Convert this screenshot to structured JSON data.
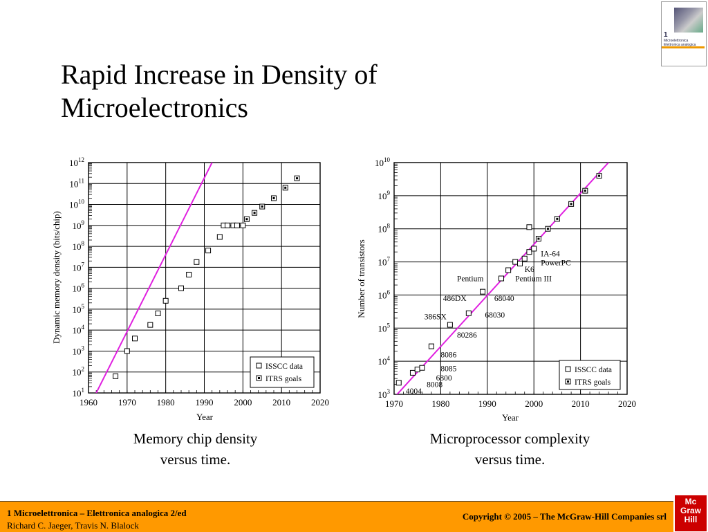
{
  "slide": {
    "title": "Rapid Increase in Density of\nMicroelectronics",
    "caption_left": "Memory chip density\nversus time.",
    "caption_right": "Microprocessor complexity\nversus time."
  },
  "footer": {
    "line1": "1 Microelettronica – Elettronica analogica 2/ed",
    "line2": "Richard C. Jaeger, Travis N. Blalock",
    "copyright": "Copyright © 2005 – The McGraw-Hill Companies srl",
    "logo_text": "Mc Graw Hill",
    "bar_color": "#ff9900",
    "logo_color": "#cc0000"
  },
  "book_cover": {
    "number": "1",
    "title": "Microelettronica\nElettronica analogica"
  },
  "chart_data": [
    {
      "type": "scatter",
      "x_scale": "linear",
      "y_scale": "log",
      "xlabel": "Year",
      "ylabel": "Dynamic memory density (bits/chip)",
      "xlim": [
        1960,
        2020
      ],
      "ylim_exp": [
        1,
        12
      ],
      "x_ticks": [
        "1960",
        "1970",
        "1980",
        "1990",
        "2000",
        "2010",
        "2020"
      ],
      "y_tick_exps": [
        "1",
        "2",
        "3",
        "4",
        "5",
        "6",
        "7",
        "8",
        "9",
        "10",
        "11",
        "12"
      ],
      "grid": true,
      "legend": [
        "ISSCC data",
        "ITRS goals"
      ],
      "legend_position": "bottom-right",
      "trend_color": "#e020e0",
      "trend_line": [
        [
          1962,
          1
        ],
        [
          1992,
          12
        ]
      ],
      "series": [
        {
          "name": "ISSCC data",
          "marker": "open-square",
          "points": [
            [
              1967,
              1.8
            ],
            [
              1970,
              3.0
            ],
            [
              1972,
              3.6
            ],
            [
              1976,
              4.25
            ],
            [
              1978,
              4.8
            ],
            [
              1980,
              5.4
            ],
            [
              1984,
              6.0
            ],
            [
              1986,
              6.65
            ],
            [
              1988,
              7.25
            ],
            [
              1991,
              7.8
            ],
            [
              1994,
              8.45
            ],
            [
              1995,
              9.0
            ],
            [
              1996,
              9.0
            ],
            [
              1997.5,
              9.0
            ],
            [
              1998.5,
              9.0
            ],
            [
              2000,
              9.0
            ]
          ]
        },
        {
          "name": "ITRS goals",
          "marker": "dot-square",
          "points": [
            [
              2001,
              9.3
            ],
            [
              2003,
              9.6
            ],
            [
              2005,
              9.9
            ],
            [
              2008,
              10.3
            ],
            [
              2011,
              10.8
            ],
            [
              2014,
              11.25
            ]
          ]
        }
      ]
    },
    {
      "type": "scatter",
      "x_scale": "linear",
      "y_scale": "log",
      "xlabel": "Year",
      "ylabel": "Number of transistors",
      "xlim": [
        1970,
        2020
      ],
      "ylim_exp": [
        3,
        10
      ],
      "x_ticks": [
        "1970",
        "1980",
        "1990",
        "2000",
        "2010",
        "2020"
      ],
      "y_tick_exps": [
        "3",
        "4",
        "5",
        "6",
        "7",
        "8",
        "9",
        "10"
      ],
      "grid": true,
      "legend": [
        "ISSCC data",
        "ITRS goals"
      ],
      "legend_position": "bottom-right",
      "trend_color": "#e020e0",
      "trend_line": [
        [
          1970,
          2.9
        ],
        [
          2016,
          10.0
        ]
      ],
      "series": [
        {
          "name": "ISSCC data",
          "marker": "open-square",
          "points": [
            [
              1971,
              3.35
            ],
            [
              1974,
              3.65
            ],
            [
              1975,
              3.75
            ],
            [
              1976,
              3.8
            ],
            [
              1978,
              4.45
            ],
            [
              1982,
              5.1
            ],
            [
              1986,
              5.45
            ],
            [
              1989,
              6.1
            ],
            [
              1993,
              6.5
            ],
            [
              1994.5,
              6.75
            ],
            [
              1996,
              7.0
            ],
            [
              1997,
              6.95
            ],
            [
              1998,
              7.1
            ],
            [
              1999,
              7.3
            ],
            [
              2000,
              7.4
            ],
            [
              1999,
              8.05
            ]
          ]
        },
        {
          "name": "ITRS goals",
          "marker": "dot-square",
          "points": [
            [
              2001,
              7.7
            ],
            [
              2003,
              8.0
            ],
            [
              2005,
              8.3
            ],
            [
              2008,
              8.75
            ],
            [
              2011,
              9.15
            ],
            [
              2014,
              9.6
            ]
          ]
        }
      ],
      "annotations": [
        {
          "text": "4004",
          "year": 1972.5,
          "exp": 3.1
        },
        {
          "text": "8008",
          "year": 1977,
          "exp": 3.3
        },
        {
          "text": "6800",
          "year": 1979,
          "exp": 3.5
        },
        {
          "text": "8085",
          "year": 1980,
          "exp": 3.78
        },
        {
          "text": "8086",
          "year": 1980,
          "exp": 4.2
        },
        {
          "text": "80286",
          "year": 1983.5,
          "exp": 4.8
        },
        {
          "text": "386SX",
          "year": 1976.5,
          "exp": 5.35
        },
        {
          "text": "68030",
          "year": 1989.5,
          "exp": 5.4
        },
        {
          "text": "486DX",
          "year": 1980.5,
          "exp": 5.9
        },
        {
          "text": "68040",
          "year": 1991.5,
          "exp": 5.9
        },
        {
          "text": "Pentium",
          "year": 1983.5,
          "exp": 6.5
        },
        {
          "text": "Pentium III",
          "year": 1996,
          "exp": 6.5
        },
        {
          "text": "K6",
          "year": 1998,
          "exp": 6.78
        },
        {
          "text": "PowerPC",
          "year": 2001.5,
          "exp": 6.98
        },
        {
          "text": "IA-64",
          "year": 2001.5,
          "exp": 7.25
        }
      ]
    }
  ]
}
